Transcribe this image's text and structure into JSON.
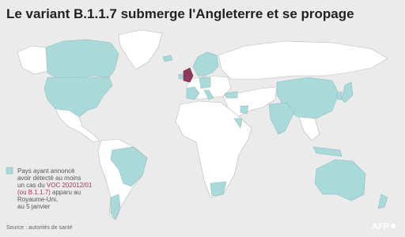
{
  "header": {
    "title": "Le variant B.1.1.7 submerge l'Angleterre et se propage"
  },
  "legend": {
    "lines": [
      [
        "Pays ayant annoncé"
      ],
      [
        "avoir détecté au moins"
      ],
      [
        "un cas du ",
        "VOC 202012/01"
      ],
      [
        "(ou B.1.1.7)",
        " apparu au"
      ],
      [
        "Royaume-Uni,"
      ],
      [
        "au 5 janvier"
      ]
    ]
  },
  "footer": {
    "source": "Source : autorités de santé",
    "logo": "AFP"
  }
}
